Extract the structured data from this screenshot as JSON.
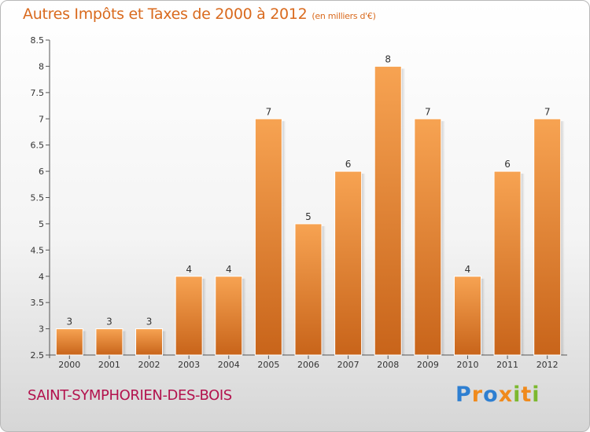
{
  "title": "Autres Impôts et Taxes de 2000 à 2012",
  "subtitle": "(en milliers d'€)",
  "commune": "SAINT-SYMPHORIEN-DES-BOIS",
  "logo": {
    "letters": [
      "P",
      "r",
      "o",
      "x",
      "i",
      "t",
      "i"
    ],
    "colors": [
      "#2e7fd1",
      "#f08a1c",
      "#2e7fd1",
      "#f08a1c",
      "#7cb82f",
      "#f08a1c",
      "#7cb82f"
    ]
  },
  "colors": {
    "bar_light": "#f7a352",
    "bar_dark": "#c8641a",
    "title": "#d96a1e",
    "commune": "#b3124d"
  },
  "chart_data": {
    "type": "bar",
    "categories": [
      "2000",
      "2001",
      "2002",
      "2003",
      "2004",
      "2005",
      "2006",
      "2007",
      "2008",
      "2009",
      "2010",
      "2011",
      "2012"
    ],
    "values": [
      3,
      3,
      3,
      4,
      4,
      7,
      5,
      6,
      8,
      7,
      4,
      6,
      7
    ],
    "yticks": [
      "2.5",
      "3",
      "3.5",
      "4",
      "4.5",
      "5",
      "5.5",
      "6",
      "6.5",
      "7",
      "7.5",
      "8",
      "8.5"
    ],
    "ylim": [
      2.5,
      8.5
    ],
    "grid": false,
    "legend": "none"
  }
}
